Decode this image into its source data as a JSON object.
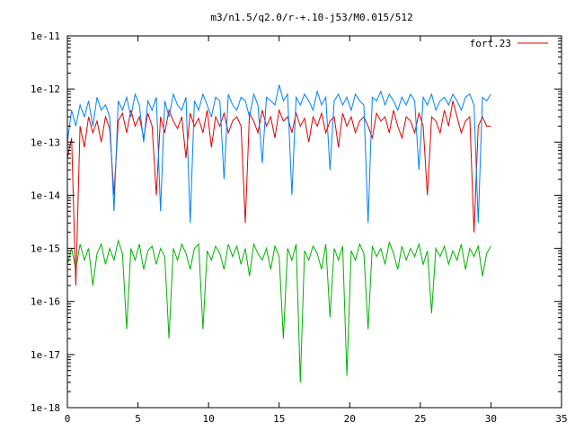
{
  "chart_data": {
    "type": "line",
    "title": "m3/n1.5/q2.0/r-+.10-j53/M0.015/512",
    "xlabel": "",
    "ylabel": "",
    "xlim": [
      0,
      35
    ],
    "ylim": [
      1e-18,
      1e-11
    ],
    "y_scale": "log",
    "grid": false,
    "legend_position": "top-right",
    "x_ticks": [
      0,
      5,
      10,
      15,
      20,
      25,
      30,
      35
    ],
    "x_tick_labels": [
      "0",
      "5",
      "10",
      "15",
      "20",
      "25",
      "30",
      "35"
    ],
    "y_ticks": [
      1e-18,
      1e-17,
      1e-16,
      1e-15,
      1e-14,
      1e-13,
      1e-12,
      1e-11
    ],
    "y_tick_labels": [
      "1e-18",
      "1e-17",
      "1e-16",
      "1e-15",
      "1e-14",
      "1e-13",
      "1e-12",
      "1e-11"
    ],
    "series": [
      {
        "name": "fort.23",
        "color": "#e00000",
        "x": [
          0,
          0.3,
          0.6,
          0.9,
          1.2,
          1.5,
          1.8,
          2.1,
          2.4,
          2.7,
          3.0,
          3.3,
          3.6,
          3.9,
          4.2,
          4.5,
          4.8,
          5.1,
          5.4,
          5.7,
          6.0,
          6.3,
          6.6,
          6.9,
          7.2,
          7.5,
          7.8,
          8.1,
          8.4,
          8.7,
          9.0,
          9.3,
          9.6,
          9.9,
          10.2,
          10.5,
          10.8,
          11.1,
          11.4,
          11.7,
          12.0,
          12.3,
          12.6,
          12.9,
          13.2,
          13.5,
          13.8,
          14.1,
          14.4,
          14.7,
          15.0,
          15.3,
          15.6,
          15.9,
          16.2,
          16.5,
          16.8,
          17.1,
          17.4,
          17.7,
          18.0,
          18.3,
          18.6,
          18.9,
          19.2,
          19.5,
          19.8,
          20.1,
          20.4,
          20.7,
          21.0,
          21.3,
          21.6,
          21.9,
          22.2,
          22.5,
          22.8,
          23.1,
          23.4,
          23.7,
          24.0,
          24.3,
          24.6,
          24.9,
          25.2,
          25.5,
          25.8,
          26.1,
          26.4,
          26.7,
          27.0,
          27.3,
          27.6,
          27.9,
          28.2,
          28.5,
          28.8,
          29.1,
          29.4,
          29.7,
          30.0
        ],
        "values": [
          5e-14,
          1.2e-13,
          2e-16,
          2e-13,
          8e-14,
          3e-13,
          1.5e-13,
          2.5e-13,
          1e-13,
          3e-13,
          1.8e-13,
          1e-14,
          2.5e-13,
          3.5e-13,
          1.5e-13,
          4e-13,
          2e-13,
          3e-13,
          1.2e-13,
          3.5e-13,
          2e-13,
          1e-14,
          3e-13,
          1.5e-13,
          4e-13,
          2.5e-13,
          1.8e-13,
          3e-13,
          5e-14,
          3.5e-13,
          2e-13,
          2.8e-13,
          1.5e-13,
          4e-13,
          8e-14,
          3e-13,
          2e-13,
          3.5e-13,
          1.5e-13,
          2.5e-13,
          3e-13,
          2e-13,
          3e-15,
          3.5e-13,
          2.5e-13,
          1.5e-13,
          4e-13,
          2e-13,
          3e-13,
          1.2e-13,
          4e-13,
          2.5e-13,
          3e-13,
          1.5e-13,
          3.5e-13,
          2e-13,
          2.8e-13,
          1e-13,
          3e-13,
          2e-13,
          3.5e-13,
          1.5e-13,
          2.5e-13,
          3e-13,
          8e-14,
          3.5e-13,
          2e-13,
          3e-13,
          1.5e-13,
          2.5e-13,
          3e-13,
          2e-13,
          1.2e-13,
          3.5e-13,
          2.5e-13,
          3e-13,
          1.5e-13,
          4e-13,
          2e-13,
          1.2e-13,
          3e-13,
          2.5e-13,
          1.5e-13,
          3.5e-13,
          2e-13,
          1e-14,
          3e-13,
          2.5e-13,
          1.5e-13,
          4e-13,
          2e-13,
          6e-13,
          3e-13,
          1.5e-13,
          2.5e-13,
          3e-13,
          2e-15,
          2e-13,
          3e-13,
          2e-13,
          2e-13
        ]
      },
      {
        "name": "",
        "color": "#0080ff",
        "x": [
          0,
          0.3,
          0.6,
          0.9,
          1.2,
          1.5,
          1.8,
          2.1,
          2.4,
          2.7,
          3.0,
          3.3,
          3.6,
          3.9,
          4.2,
          4.5,
          4.8,
          5.1,
          5.4,
          5.7,
          6.0,
          6.3,
          6.6,
          6.9,
          7.2,
          7.5,
          7.8,
          8.1,
          8.4,
          8.7,
          9.0,
          9.3,
          9.6,
          9.9,
          10.2,
          10.5,
          10.8,
          11.1,
          11.4,
          11.7,
          12.0,
          12.3,
          12.6,
          12.9,
          13.2,
          13.5,
          13.8,
          14.1,
          14.4,
          14.7,
          15.0,
          15.3,
          15.6,
          15.9,
          16.2,
          16.5,
          16.8,
          17.1,
          17.4,
          17.7,
          18.0,
          18.3,
          18.6,
          18.9,
          19.2,
          19.5,
          19.8,
          20.1,
          20.4,
          20.7,
          21.0,
          21.3,
          21.6,
          21.9,
          22.2,
          22.5,
          22.8,
          23.1,
          23.4,
          23.7,
          24.0,
          24.3,
          24.6,
          24.9,
          25.2,
          25.5,
          25.8,
          26.1,
          26.4,
          26.7,
          27.0,
          27.3,
          27.6,
          27.9,
          28.2,
          28.5,
          28.8,
          29.1,
          29.4,
          29.7,
          30.0
        ],
        "values": [
          1e-13,
          4e-13,
          2e-13,
          5e-13,
          3e-13,
          6e-13,
          2e-13,
          7e-13,
          4e-13,
          5e-13,
          3e-13,
          5e-15,
          6e-13,
          4e-13,
          7e-13,
          3e-13,
          8e-13,
          5e-13,
          1e-13,
          6e-13,
          4e-13,
          7e-13,
          5e-15,
          6e-13,
          3e-13,
          8e-13,
          5e-13,
          4e-13,
          7e-13,
          3e-15,
          6e-13,
          4e-13,
          8e-13,
          5e-13,
          3e-13,
          7e-13,
          6e-13,
          2e-14,
          8e-13,
          5e-13,
          4e-13,
          7e-13,
          6e-13,
          3e-13,
          8e-13,
          5e-13,
          4e-14,
          7e-13,
          6e-13,
          5e-13,
          1.2e-12,
          6e-13,
          8e-13,
          1e-14,
          7e-13,
          5e-13,
          8e-13,
          6e-13,
          4e-13,
          9e-13,
          5e-13,
          7e-13,
          3e-14,
          6e-13,
          8e-13,
          5e-13,
          7e-13,
          4e-13,
          8e-13,
          6e-13,
          5e-13,
          3e-15,
          7e-13,
          6e-13,
          9e-13,
          5e-13,
          8e-13,
          6e-13,
          4e-13,
          7e-13,
          5e-13,
          8e-13,
          6e-13,
          3e-14,
          7e-13,
          5e-13,
          8e-13,
          4e-13,
          6e-13,
          7e-13,
          5e-13,
          8e-13,
          6e-13,
          4e-13,
          7e-13,
          8e-13,
          5e-13,
          3e-15,
          7e-13,
          6e-13,
          8e-13
        ]
      },
      {
        "name": "",
        "color": "#00b000",
        "x": [
          0,
          0.3,
          0.6,
          0.9,
          1.2,
          1.5,
          1.8,
          2.1,
          2.4,
          2.7,
          3.0,
          3.3,
          3.6,
          3.9,
          4.2,
          4.5,
          4.8,
          5.1,
          5.4,
          5.7,
          6.0,
          6.3,
          6.6,
          6.9,
          7.2,
          7.5,
          7.8,
          8.1,
          8.4,
          8.7,
          9.0,
          9.3,
          9.6,
          9.9,
          10.2,
          10.5,
          10.8,
          11.1,
          11.4,
          11.7,
          12.0,
          12.3,
          12.6,
          12.9,
          13.2,
          13.5,
          13.8,
          14.1,
          14.4,
          14.7,
          15.0,
          15.3,
          15.6,
          15.9,
          16.2,
          16.5,
          16.8,
          17.1,
          17.4,
          17.7,
          18.0,
          18.3,
          18.6,
          18.9,
          19.2,
          19.5,
          19.8,
          20.1,
          20.4,
          20.7,
          21.0,
          21.3,
          21.6,
          21.9,
          22.2,
          22.5,
          22.8,
          23.1,
          23.4,
          23.7,
          24.0,
          24.3,
          24.6,
          24.9,
          25.2,
          25.5,
          25.8,
          26.1,
          26.4,
          26.7,
          27.0,
          27.3,
          27.6,
          27.9,
          28.2,
          28.5,
          28.8,
          29.1,
          29.4,
          29.7,
          30.0
        ],
        "values": [
          5e-16,
          1e-15,
          4e-16,
          1.2e-15,
          6e-16,
          1e-15,
          2e-16,
          8e-16,
          1.2e-15,
          5e-16,
          1e-15,
          6e-16,
          1.4e-15,
          8e-16,
          3e-17,
          1e-15,
          6e-16,
          1.2e-15,
          4e-16,
          9e-16,
          1.1e-15,
          5e-16,
          1e-15,
          7e-16,
          2e-17,
          1e-15,
          6e-16,
          1.2e-15,
          8e-16,
          4e-16,
          1e-15,
          1.2e-15,
          3e-17,
          9e-16,
          6e-16,
          1.1e-15,
          8e-16,
          4e-16,
          1.2e-15,
          7e-16,
          1.1e-15,
          5e-16,
          1e-15,
          3e-16,
          1.2e-15,
          8e-16,
          6e-16,
          1e-15,
          4e-16,
          1.1e-15,
          7e-16,
          2e-17,
          1e-15,
          6e-16,
          1.2e-15,
          3e-18,
          9e-16,
          6e-16,
          1.1e-15,
          8e-16,
          4e-16,
          1.2e-15,
          5e-17,
          1e-15,
          6e-16,
          1.1e-15,
          4e-18,
          9e-16,
          6e-16,
          1.2e-15,
          8e-16,
          3e-17,
          1.1e-15,
          7e-16,
          1e-15,
          5e-16,
          1.3e-15,
          8e-16,
          4e-16,
          1.1e-15,
          6e-16,
          1e-15,
          7e-16,
          1.2e-15,
          5e-16,
          9e-16,
          6e-17,
          1e-15,
          7e-16,
          1.1e-15,
          5e-16,
          9e-16,
          6e-16,
          1.2e-15,
          4e-16,
          1e-15,
          7e-16,
          1.1e-15,
          3e-16,
          8e-16,
          1.1e-15
        ]
      }
    ]
  }
}
